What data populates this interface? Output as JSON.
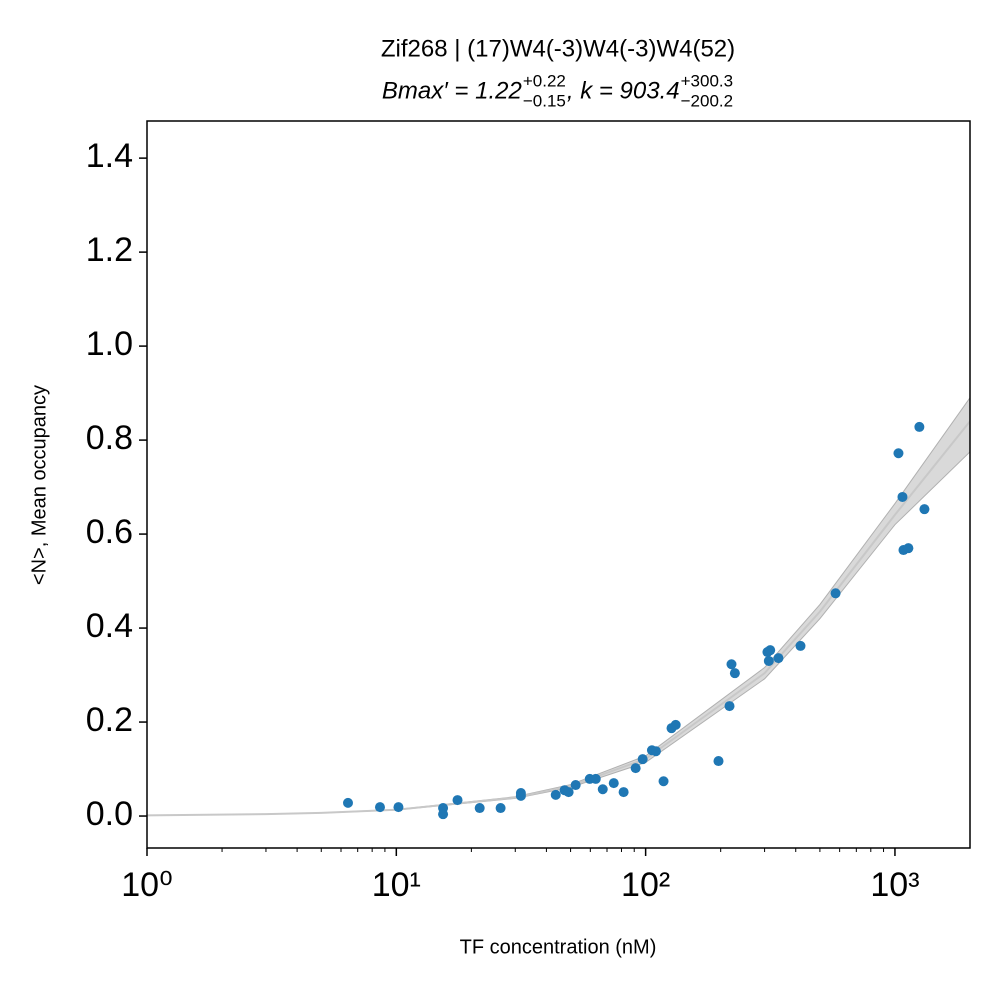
{
  "chart_data": {
    "type": "scatter",
    "title": "Zif268 | (17)W4(-3)W4(-3)W4(52)",
    "subtitle_parts": [
      "Bmax′ = 1.22",
      "+0.22",
      "−0.15",
      ", k = 903.4",
      "+300.3",
      "−200.2"
    ],
    "xlabel": "TF concentration (nM)",
    "ylabel": "<N>, Mean occupancy",
    "xscale": "log",
    "xlim": [
      1,
      2000
    ],
    "ylim": [
      -0.068,
      1.479
    ],
    "xticks": [
      {
        "value": 1,
        "label": "10⁰"
      },
      {
        "value": 10,
        "label": "10¹"
      },
      {
        "value": 100,
        "label": "10²"
      },
      {
        "value": 1000,
        "label": "10³"
      }
    ],
    "xminorticks": [
      2,
      3,
      4,
      5,
      6,
      7,
      8,
      9,
      20,
      30,
      40,
      50,
      60,
      70,
      80,
      90,
      200,
      300,
      400,
      500,
      600,
      700,
      800,
      900
    ],
    "yticks": [
      {
        "value": 0,
        "label": "0.0"
      },
      0.2,
      0.4,
      0.6,
      0.8,
      {
        "value": 1,
        "label": "1.0"
      },
      1.2,
      1.4
    ],
    "color": "#1f77b4",
    "x": [
      6.4,
      8.6,
      10.2,
      15.4,
      15.4,
      17.6,
      21.6,
      26.2,
      31.6,
      31.6,
      43.6,
      47.3,
      49.1,
      52.4,
      59.7,
      63.1,
      67.3,
      74.5,
      81.6,
      91.2,
      97.3,
      106,
      110,
      118,
      127,
      132,
      196,
      217,
      221,
      228,
      308,
      312,
      316,
      341,
      418,
      578,
      1033,
      1072,
      1082,
      1132,
      1253,
      1313
    ],
    "values": [
      0.028,
      0.019,
      0.019,
      0.017,
      0.004,
      0.034,
      0.017,
      0.017,
      0.049,
      0.043,
      0.045,
      0.055,
      0.051,
      0.066,
      0.079,
      0.079,
      0.057,
      0.07,
      0.051,
      0.102,
      0.121,
      0.14,
      0.138,
      0.074,
      0.187,
      0.194,
      0.117,
      0.234,
      0.323,
      0.304,
      0.349,
      0.33,
      0.353,
      0.336,
      0.362,
      0.474,
      0.772,
      0.679,
      0.566,
      0.57,
      0.828,
      0.653
    ],
    "fit": {
      "color": "#c8c8c8",
      "x": [
        1,
        3,
        5,
        10,
        30,
        50,
        100,
        300,
        500,
        1000,
        2000
      ],
      "y": [
        0.00135,
        0.00404,
        0.00672,
        0.01336,
        0.0392,
        0.064,
        0.1216,
        0.304,
        0.435,
        0.641,
        0.84
      ]
    },
    "band": {
      "color": "#d9d9d9",
      "x": [
        1,
        3,
        5,
        10,
        30,
        50,
        100,
        300,
        500,
        1000,
        2000
      ],
      "lower": [
        0.0013,
        0.0039,
        0.0065,
        0.0128,
        0.0375,
        0.061,
        0.114,
        0.292,
        0.42,
        0.62,
        0.775
      ],
      "upper": [
        0.0014,
        0.0042,
        0.007,
        0.014,
        0.041,
        0.067,
        0.128,
        0.316,
        0.45,
        0.665,
        0.89
      ]
    }
  }
}
